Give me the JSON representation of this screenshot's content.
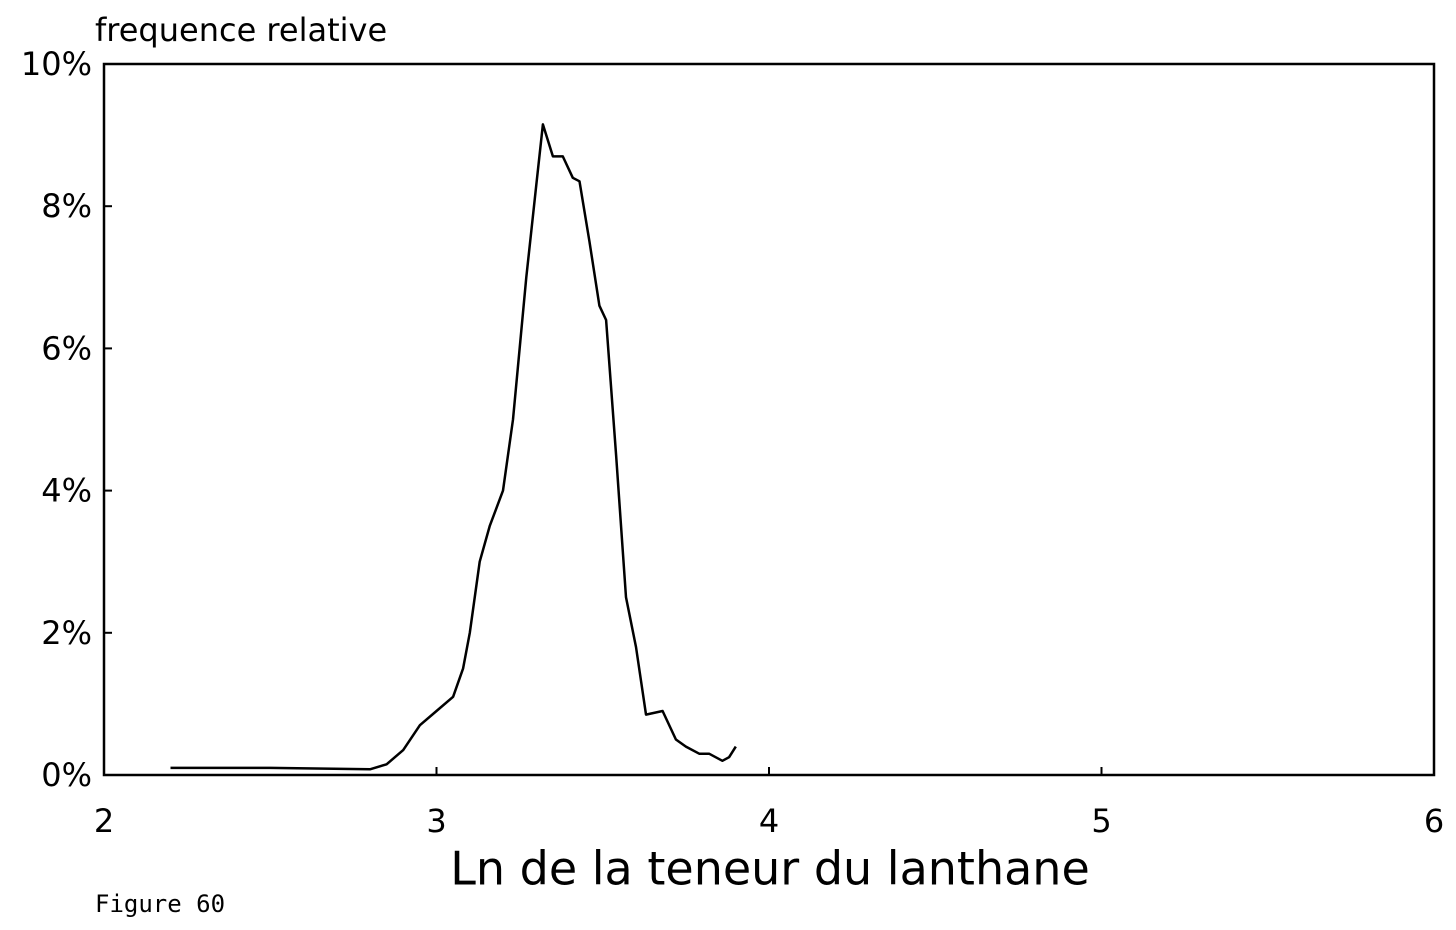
{
  "chart_data": {
    "type": "line",
    "y_axis_label": "frequence relative",
    "x_axis_label": "Ln de la teneur du lanthane",
    "figure_label": "Figure 60",
    "color": "#000000",
    "x": [
      2.2,
      2.5,
      2.8,
      2.85,
      2.9,
      2.95,
      3.0,
      3.05,
      3.08,
      3.1,
      3.13,
      3.16,
      3.2,
      3.23,
      3.27,
      3.3,
      3.32,
      3.35,
      3.38,
      3.41,
      3.43,
      3.46,
      3.49,
      3.51,
      3.54,
      3.57,
      3.6,
      3.63,
      3.68,
      3.72,
      3.75,
      3.79,
      3.82,
      3.86,
      3.88,
      3.9
    ],
    "values": [
      0.1,
      0.1,
      0.08,
      0.15,
      0.35,
      0.7,
      0.9,
      1.1,
      1.5,
      2.0,
      3.0,
      3.5,
      4.0,
      5.0,
      7.0,
      8.3,
      9.15,
      8.7,
      8.7,
      8.4,
      8.35,
      7.5,
      6.6,
      6.4,
      4.5,
      2.5,
      1.8,
      0.85,
      0.9,
      0.5,
      0.4,
      0.3,
      0.3,
      0.2,
      0.25,
      0.4
    ],
    "xlim": [
      2,
      6
    ],
    "xticks": [
      2,
      3,
      4,
      5,
      6
    ],
    "ylim": [
      0,
      10
    ],
    "yticks": [
      {
        "value": 0,
        "label": "0%"
      },
      {
        "value": 2,
        "label": "2%"
      },
      {
        "value": 4,
        "label": "4%"
      },
      {
        "value": 6,
        "label": "6%"
      },
      {
        "value": 8,
        "label": "8%"
      },
      {
        "value": 10,
        "label": "10%"
      }
    ]
  }
}
